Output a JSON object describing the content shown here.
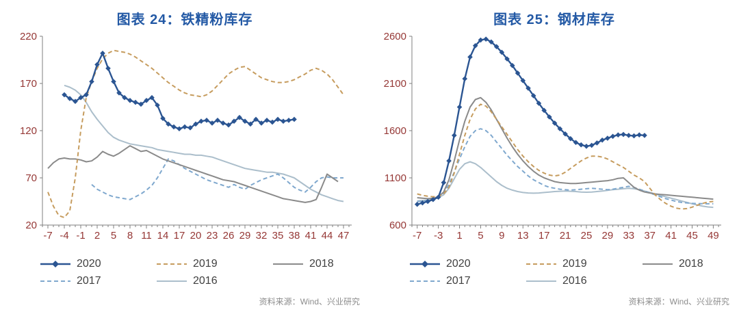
{
  "colors": {
    "title": "#2359A5",
    "axis_label": "#953735",
    "axis_line": "#7F7F7F",
    "legend_text": "#404040",
    "source_text": "#8C8C8C"
  },
  "chart_data": [
    {
      "type": "line",
      "title": "图表 24：铁精粉库存",
      "source": "资料来源：Wind、兴业研究",
      "xlabel": "",
      "ylabel": "",
      "xlim": [
        -8,
        48.5
      ],
      "ylim": [
        20,
        220
      ],
      "yticks": [
        20,
        70,
        120,
        170,
        220
      ],
      "xticks": [
        -7,
        -4,
        -1,
        2,
        5,
        8,
        11,
        14,
        17,
        20,
        23,
        26,
        29,
        32,
        35,
        38,
        41,
        44,
        47
      ],
      "grid": false,
      "legend_position": "bottom",
      "legend_rows": [
        [
          "2020",
          "2019",
          "2018"
        ],
        [
          "2017",
          "2016"
        ]
      ],
      "series": [
        {
          "name": "2020",
          "color": "#2B5592",
          "style": "solid",
          "marker": "diamond",
          "x_start": -4,
          "values": [
            158,
            154,
            151,
            155,
            158,
            172,
            190,
            202,
            186,
            172,
            160,
            155,
            152,
            150,
            148,
            152,
            155,
            147,
            133,
            127,
            124,
            122,
            124,
            123,
            127,
            130,
            131,
            128,
            131,
            128,
            126,
            130,
            134,
            130,
            127,
            132,
            128,
            131,
            129,
            132,
            130,
            131,
            132
          ]
        },
        {
          "name": "2019",
          "color": "#C69C5E",
          "style": "dashed",
          "x_start": -7,
          "values": [
            55,
            40,
            30,
            28,
            35,
            70,
            120,
            155,
            172,
            186,
            196,
            202,
            205,
            204,
            203,
            201,
            198,
            194,
            190,
            186,
            181,
            176,
            171,
            167,
            163,
            160,
            158,
            157,
            156,
            158,
            162,
            168,
            174,
            180,
            184,
            187,
            188,
            184,
            180,
            176,
            174,
            172,
            171,
            171,
            172,
            174,
            177,
            180,
            184,
            186,
            184,
            180,
            174,
            166,
            158
          ]
        },
        {
          "name": "2018",
          "color": "#8A8A8A",
          "style": "solid",
          "x_start": -7,
          "values": [
            80,
            86,
            90,
            91,
            90,
            90,
            89,
            87,
            88,
            92,
            98,
            95,
            93,
            96,
            100,
            104,
            101,
            98,
            99,
            96,
            93,
            90,
            88,
            86,
            84,
            82,
            80,
            78,
            76,
            74,
            72,
            70,
            68,
            67,
            66,
            64,
            62,
            60,
            58,
            56,
            54,
            52,
            50,
            48,
            47,
            46,
            45,
            44,
            45,
            47,
            60,
            74,
            70,
            66
          ]
        },
        {
          "name": "2017",
          "color": "#7FA8CE",
          "style": "dashed",
          "x_start": 1,
          "values": [
            63,
            58,
            55,
            52,
            50,
            49,
            48,
            47,
            50,
            53,
            57,
            62,
            70,
            80,
            90,
            88,
            84,
            80,
            77,
            74,
            71,
            68,
            66,
            64,
            62,
            60,
            63,
            60,
            58,
            62,
            65,
            68,
            70,
            72,
            74,
            70,
            65,
            60,
            57,
            55,
            60,
            66,
            70,
            71,
            70,
            70,
            70
          ]
        },
        {
          "name": "2016",
          "color": "#ABBECB",
          "style": "solid",
          "x_start": -4,
          "values": [
            168,
            166,
            163,
            158,
            150,
            140,
            132,
            125,
            118,
            113,
            110,
            108,
            106,
            105,
            104,
            103,
            102,
            100,
            99,
            98,
            97,
            96,
            95,
            95,
            94,
            94,
            93,
            92,
            90,
            88,
            86,
            84,
            82,
            80,
            79,
            78,
            77,
            76,
            76,
            75,
            74,
            72,
            70,
            66,
            62,
            58,
            55,
            52,
            50,
            48,
            46,
            45
          ]
        }
      ]
    },
    {
      "type": "line",
      "title": "图表 25：钢材库存",
      "source": "资料来源：Wind、兴业研究",
      "xlabel": "",
      "ylabel": "",
      "xlim": [
        -8,
        50.5
      ],
      "ylim": [
        600,
        2600
      ],
      "yticks": [
        600,
        1100,
        1600,
        2100,
        2600
      ],
      "xticks": [
        -7,
        -3,
        1,
        5,
        9,
        13,
        17,
        21,
        25,
        29,
        33,
        37,
        41,
        45,
        49
      ],
      "grid": false,
      "legend_position": "bottom",
      "legend_rows": [
        [
          "2020",
          "2019",
          "2018"
        ],
        [
          "2017",
          "2016"
        ]
      ],
      "series": [
        {
          "name": "2020",
          "color": "#2B5592",
          "style": "solid",
          "marker": "diamond",
          "x_start": -7,
          "values": [
            820,
            835,
            850,
            870,
            895,
            1050,
            1280,
            1550,
            1850,
            2150,
            2380,
            2500,
            2560,
            2570,
            2540,
            2490,
            2430,
            2360,
            2290,
            2210,
            2130,
            2050,
            1970,
            1890,
            1815,
            1745,
            1680,
            1620,
            1565,
            1515,
            1475,
            1450,
            1435,
            1445,
            1470,
            1500,
            1520,
            1540,
            1555,
            1560,
            1550,
            1545,
            1555,
            1550
          ]
        },
        {
          "name": "2019",
          "color": "#C69C5E",
          "style": "dashed",
          "x_start": -7,
          "values": [
            930,
            915,
            905,
            900,
            905,
            930,
            1000,
            1150,
            1350,
            1550,
            1720,
            1830,
            1880,
            1860,
            1800,
            1720,
            1640,
            1560,
            1480,
            1400,
            1330,
            1270,
            1220,
            1180,
            1150,
            1130,
            1120,
            1130,
            1160,
            1200,
            1240,
            1280,
            1310,
            1330,
            1330,
            1320,
            1300,
            1270,
            1240,
            1210,
            1170,
            1130,
            1100,
            1060,
            990,
            920,
            870,
            830,
            800,
            780,
            770,
            775,
            790,
            810,
            830,
            845,
            850
          ]
        },
        {
          "name": "2018",
          "color": "#8A8A8A",
          "style": "solid",
          "x_start": -7,
          "values": [
            890,
            885,
            880,
            885,
            900,
            950,
            1080,
            1280,
            1500,
            1700,
            1850,
            1930,
            1950,
            1900,
            1820,
            1720,
            1620,
            1520,
            1430,
            1350,
            1280,
            1220,
            1170,
            1130,
            1100,
            1080,
            1060,
            1050,
            1045,
            1040,
            1040,
            1045,
            1050,
            1055,
            1060,
            1065,
            1070,
            1080,
            1095,
            1100,
            1050,
            1000,
            970,
            950,
            940,
            930,
            925,
            920,
            915,
            910,
            905,
            900,
            895,
            890,
            885,
            880,
            875
          ]
        },
        {
          "name": "2017",
          "color": "#7FA8CE",
          "style": "dashed",
          "x_start": -7,
          "values": [
            850,
            855,
            860,
            870,
            890,
            940,
            1030,
            1160,
            1300,
            1430,
            1540,
            1600,
            1620,
            1600,
            1550,
            1480,
            1410,
            1340,
            1280,
            1220,
            1170,
            1120,
            1080,
            1050,
            1020,
            1000,
            990,
            980,
            975,
            970,
            975,
            980,
            985,
            990,
            985,
            980,
            975,
            980,
            990,
            1000,
            1010,
            1000,
            980,
            960,
            940,
            920,
            900,
            880,
            865,
            850,
            840,
            835,
            830,
            828,
            826,
            825,
            825
          ]
        },
        {
          "name": "2016",
          "color": "#ABBECB",
          "style": "solid",
          "x_start": -7,
          "values": [
            855,
            860,
            865,
            875,
            890,
            920,
            990,
            1090,
            1190,
            1250,
            1270,
            1250,
            1210,
            1160,
            1110,
            1060,
            1020,
            990,
            970,
            955,
            945,
            940,
            938,
            940,
            945,
            950,
            955,
            958,
            960,
            958,
            955,
            950,
            948,
            950,
            955,
            960,
            968,
            975,
            980,
            985,
            990,
            985,
            975,
            960,
            945,
            930,
            915,
            900,
            885,
            870,
            855,
            840,
            825,
            812,
            800,
            792,
            788
          ]
        }
      ]
    }
  ]
}
